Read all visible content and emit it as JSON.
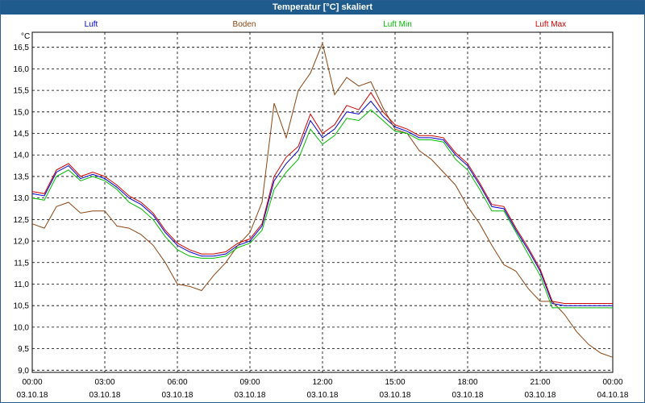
{
  "window": {
    "title": "Temperatur [°C] skaliert"
  },
  "chart_data": {
    "type": "line",
    "title": "Temperatur [°C] skaliert",
    "ylabel": "°C",
    "xlabel": "",
    "ylim": [
      8.95,
      16.85
    ],
    "yticks": [
      9.0,
      9.5,
      10.0,
      10.5,
      11.0,
      11.5,
      12.0,
      12.5,
      13.0,
      13.5,
      14.0,
      14.5,
      15.0,
      15.5,
      16.0,
      16.5
    ],
    "ytick_labels": [
      "9,0",
      "9,5",
      "10,0",
      "10,5",
      "11,0",
      "11,5",
      "12,0",
      "12,5",
      "13,0",
      "13,5",
      "14,0",
      "14,5",
      "15,0",
      "15,5",
      "16,0",
      "16,5"
    ],
    "xlim": [
      0,
      24
    ],
    "xticks": [
      0,
      3,
      6,
      9,
      12,
      15,
      18,
      21,
      24
    ],
    "xtick_time": [
      "00:00",
      "03:00",
      "06:00",
      "09:00",
      "12:00",
      "15:00",
      "18:00",
      "21:00",
      "00:00"
    ],
    "xtick_date": [
      "03.10.18",
      "03.10.18",
      "03.10.18",
      "03.10.18",
      "03.10.18",
      "03.10.18",
      "03.10.18",
      "03.10.18",
      "04.10.18"
    ],
    "grid": true,
    "series": [
      {
        "name": "Luft",
        "color": "#0000cc",
        "x": [
          0,
          0.5,
          1,
          1.5,
          2,
          2.5,
          3,
          3.5,
          4,
          4.5,
          5,
          5.5,
          6,
          6.5,
          7,
          7.5,
          8,
          8.5,
          9,
          9.5,
          10,
          10.5,
          11,
          11.5,
          12,
          12.5,
          13,
          13.5,
          14,
          14.5,
          15,
          15.5,
          16,
          16.5,
          17,
          17.5,
          18,
          18.5,
          19,
          19.5,
          20,
          20.5,
          21,
          21.5,
          22,
          22.5,
          23,
          23.5,
          24
        ],
        "values": [
          13.1,
          13.05,
          13.6,
          13.75,
          13.45,
          13.55,
          13.45,
          13.25,
          13.0,
          12.85,
          12.6,
          12.2,
          11.9,
          11.75,
          11.65,
          11.65,
          11.7,
          11.9,
          12.0,
          12.35,
          13.4,
          13.8,
          14.1,
          14.8,
          14.4,
          14.6,
          15.0,
          14.95,
          15.25,
          14.9,
          14.65,
          14.55,
          14.4,
          14.4,
          14.35,
          14.0,
          13.75,
          13.3,
          12.8,
          12.75,
          12.25,
          11.8,
          11.3,
          10.55,
          10.5,
          10.5,
          10.5,
          10.5,
          10.5
        ]
      },
      {
        "name": "Boden",
        "color": "#8b4513",
        "x": [
          0,
          0.5,
          1,
          1.5,
          2,
          2.5,
          3,
          3.5,
          4,
          4.5,
          5,
          5.5,
          6,
          6.5,
          7,
          7.5,
          8,
          8.5,
          9,
          9.5,
          10,
          10.5,
          11,
          11.5,
          12,
          12.5,
          13,
          13.5,
          14,
          14.5,
          15,
          15.5,
          16,
          16.5,
          17,
          17.5,
          18,
          18.5,
          19,
          19.5,
          20,
          20.5,
          21,
          21.5,
          22,
          22.5,
          23,
          23.5,
          24
        ],
        "values": [
          12.4,
          12.3,
          12.8,
          12.9,
          12.65,
          12.7,
          12.7,
          12.35,
          12.3,
          12.15,
          11.9,
          11.5,
          11.0,
          10.95,
          10.85,
          11.2,
          11.5,
          11.9,
          12.2,
          12.9,
          15.2,
          14.4,
          15.5,
          15.9,
          16.6,
          15.4,
          15.8,
          15.6,
          15.7,
          15.1,
          14.6,
          14.5,
          14.1,
          13.9,
          13.6,
          13.3,
          12.8,
          12.4,
          11.9,
          11.45,
          11.3,
          10.9,
          10.6,
          10.6,
          10.3,
          9.9,
          9.6,
          9.4,
          9.3
        ]
      },
      {
        "name": "Luft Min",
        "color": "#00bb00",
        "x": [
          0,
          0.5,
          1,
          1.5,
          2,
          2.5,
          3,
          3.5,
          4,
          4.5,
          5,
          5.5,
          6,
          6.5,
          7,
          7.5,
          8,
          8.5,
          9,
          9.5,
          10,
          10.5,
          11,
          11.5,
          12,
          12.5,
          13,
          13.5,
          14,
          14.5,
          15,
          15.5,
          16,
          16.5,
          17,
          17.5,
          18,
          18.5,
          19,
          19.5,
          20,
          20.5,
          21,
          21.5,
          22,
          22.5,
          23,
          23.5,
          24
        ],
        "values": [
          13.0,
          12.95,
          13.5,
          13.65,
          13.4,
          13.5,
          13.4,
          13.2,
          12.9,
          12.75,
          12.5,
          12.1,
          11.8,
          11.65,
          11.6,
          11.6,
          11.65,
          11.85,
          11.95,
          12.25,
          13.2,
          13.6,
          13.9,
          14.6,
          14.25,
          14.45,
          14.85,
          14.8,
          15.05,
          14.8,
          14.55,
          14.5,
          14.35,
          14.35,
          14.3,
          13.9,
          13.65,
          13.2,
          12.7,
          12.7,
          12.2,
          11.7,
          11.2,
          10.45,
          10.45,
          10.45,
          10.45,
          10.45,
          10.45
        ]
      },
      {
        "name": "Luft Max",
        "color": "#cc0000",
        "x": [
          0,
          0.5,
          1,
          1.5,
          2,
          2.5,
          3,
          3.5,
          4,
          4.5,
          5,
          5.5,
          6,
          6.5,
          7,
          7.5,
          8,
          8.5,
          9,
          9.5,
          10,
          10.5,
          11,
          11.5,
          12,
          12.5,
          13,
          13.5,
          14,
          14.5,
          15,
          15.5,
          16,
          16.5,
          17,
          17.5,
          18,
          18.5,
          19,
          19.5,
          20,
          20.5,
          21,
          21.5,
          22,
          22.5,
          23,
          23.5,
          24
        ],
        "values": [
          13.15,
          13.1,
          13.65,
          13.8,
          13.5,
          13.6,
          13.5,
          13.3,
          13.05,
          12.9,
          12.65,
          12.25,
          11.95,
          11.8,
          11.7,
          11.7,
          11.75,
          11.95,
          12.05,
          12.4,
          13.5,
          13.95,
          14.2,
          14.95,
          14.5,
          14.7,
          15.15,
          15.05,
          15.45,
          15.0,
          14.7,
          14.6,
          14.45,
          14.45,
          14.4,
          14.05,
          13.8,
          13.35,
          12.85,
          12.8,
          12.3,
          11.85,
          11.35,
          10.6,
          10.55,
          10.55,
          10.55,
          10.55,
          10.55
        ]
      }
    ]
  }
}
